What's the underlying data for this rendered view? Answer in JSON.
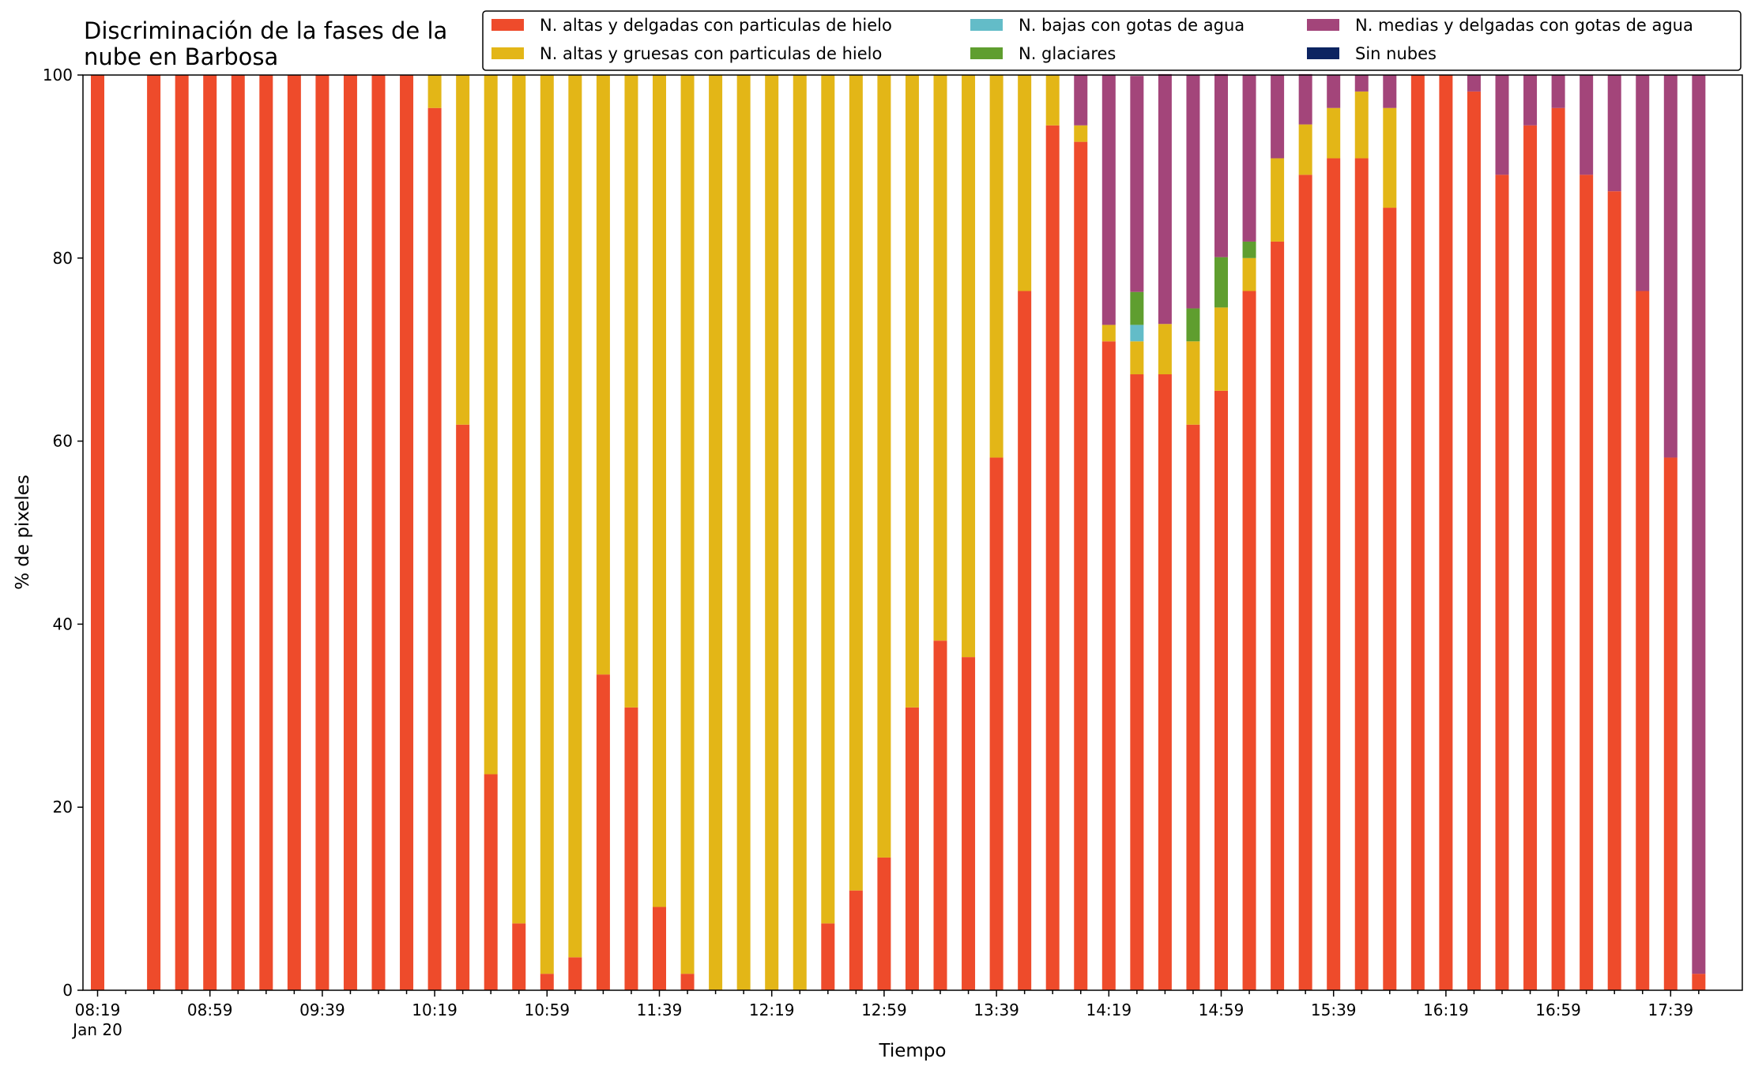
{
  "chart_data": {
    "type": "bar",
    "stacked": true,
    "title": [
      "Discriminación de la fases de la",
      "nube en Barbosa"
    ],
    "xlabel": "Tiempo",
    "ylabel": "% de pixeles",
    "ylim": [
      0,
      100
    ],
    "yticks": [
      0,
      20,
      40,
      60,
      80,
      100
    ],
    "grid": false,
    "legend_position": "top-right",
    "x_tick_labels": [
      {
        "index": 0,
        "label": "08:19",
        "sublabel": "Jan 20"
      },
      {
        "index": 4,
        "label": "08:59"
      },
      {
        "index": 8,
        "label": "09:39"
      },
      {
        "index": 12,
        "label": "10:19"
      },
      {
        "index": 16,
        "label": "10:59"
      },
      {
        "index": 20,
        "label": "11:39"
      },
      {
        "index": 24,
        "label": "12:19"
      },
      {
        "index": 28,
        "label": "12:59"
      },
      {
        "index": 32,
        "label": "13:39"
      },
      {
        "index": 36,
        "label": "14:19"
      },
      {
        "index": 40,
        "label": "14:59"
      },
      {
        "index": 44,
        "label": "15:39"
      },
      {
        "index": 48,
        "label": "16:19"
      },
      {
        "index": 52,
        "label": "16:59"
      },
      {
        "index": 56,
        "label": "17:39"
      }
    ],
    "categories": [
      "08:19",
      "08:29",
      "08:39",
      "08:49",
      "08:59",
      "09:09",
      "09:19",
      "09:29",
      "09:39",
      "09:49",
      "09:59",
      "10:09",
      "10:19",
      "10:29",
      "10:39",
      "10:49",
      "10:59",
      "11:09",
      "11:19",
      "11:29",
      "11:39",
      "11:49",
      "11:59",
      "12:09",
      "12:19",
      "12:29",
      "12:39",
      "12:49",
      "12:59",
      "13:09",
      "13:19",
      "13:29",
      "13:39",
      "13:49",
      "13:59",
      "14:09",
      "14:19",
      "14:29",
      "14:39",
      "14:49",
      "14:59",
      "15:09",
      "15:19",
      "15:29",
      "15:39",
      "15:49",
      "15:59",
      "16:09",
      "16:19",
      "16:29",
      "16:39",
      "16:49",
      "16:59",
      "17:09",
      "17:19",
      "17:29",
      "17:39",
      "17:49"
    ],
    "series": [
      {
        "name": "N. altas y delgadas con particulas de hielo",
        "color": "#ee4b2b",
        "values": [
          100,
          0,
          100,
          100,
          100,
          100,
          100,
          100,
          100,
          100,
          100,
          100,
          96.4,
          61.8,
          23.6,
          7.3,
          1.8,
          3.6,
          34.5,
          30.9,
          9.1,
          1.8,
          0,
          0,
          0,
          0,
          7.3,
          10.9,
          14.5,
          30.9,
          38.2,
          36.4,
          58.2,
          76.4,
          94.5,
          92.7,
          70.9,
          67.3,
          67.3,
          61.8,
          65.5,
          76.4,
          81.8,
          89.1,
          90.9,
          90.9,
          85.5,
          100,
          100,
          98.2,
          89.1,
          94.5,
          96.4,
          89.1,
          87.3,
          76.4,
          58.2,
          1.8
        ]
      },
      {
        "name": "N. altas y gruesas con particulas de hielo",
        "color": "#e3b617",
        "values": [
          0,
          0,
          0,
          0,
          0,
          0,
          0,
          0,
          0,
          0,
          0,
          0,
          3.6,
          38.2,
          76.4,
          92.7,
          98.2,
          96.4,
          65.5,
          69.1,
          90.9,
          98.2,
          100,
          100,
          100,
          100,
          92.7,
          89.1,
          85.5,
          69.1,
          61.8,
          63.6,
          41.8,
          23.6,
          5.5,
          1.8,
          1.8,
          3.6,
          5.5,
          9.1,
          9.1,
          3.6,
          9.1,
          5.5,
          5.5,
          7.3,
          10.9,
          0,
          0,
          0,
          0,
          0,
          0,
          0,
          0,
          0,
          0,
          0
        ]
      },
      {
        "name": "N. bajas con gotas de agua",
        "color": "#63bcc8",
        "values": [
          0,
          0,
          0,
          0,
          0,
          0,
          0,
          0,
          0,
          0,
          0,
          0,
          0,
          0,
          0,
          0,
          0,
          0,
          0,
          0,
          0,
          0,
          0,
          0,
          0,
          0,
          0,
          0,
          0,
          0,
          0,
          0,
          0,
          0,
          0,
          0,
          0,
          1.8,
          0,
          0,
          0,
          0,
          0,
          0,
          0,
          0,
          0,
          0,
          0,
          0,
          0,
          0,
          0,
          0,
          0,
          0,
          0,
          0
        ]
      },
      {
        "name": "N. glaciares",
        "color": "#5f9e2f",
        "values": [
          0,
          0,
          0,
          0,
          0,
          0,
          0,
          0,
          0,
          0,
          0,
          0,
          0,
          0,
          0,
          0,
          0,
          0,
          0,
          0,
          0,
          0,
          0,
          0,
          0,
          0,
          0,
          0,
          0,
          0,
          0,
          0,
          0,
          0,
          0,
          0,
          0,
          3.6,
          0,
          3.6,
          5.5,
          1.8,
          0,
          0,
          0,
          0,
          0,
          0,
          0,
          0,
          0,
          0,
          0,
          0,
          0,
          0,
          0,
          0
        ]
      },
      {
        "name": "N. medias y delgadas con gotas de agua",
        "color": "#a3457a",
        "values": [
          0,
          0,
          0,
          0,
          0,
          0,
          0,
          0,
          0,
          0,
          0,
          0,
          0,
          0,
          0,
          0,
          0,
          0,
          0,
          0,
          0,
          0,
          0,
          0,
          0,
          0,
          0,
          0,
          0,
          0,
          0,
          0,
          0,
          0,
          0,
          5.5,
          27.3,
          23.6,
          27.3,
          25.5,
          20,
          18.2,
          9.1,
          5.5,
          3.6,
          1.8,
          3.6,
          0,
          0,
          1.8,
          10.9,
          5.5,
          3.6,
          10.9,
          12.7,
          23.6,
          41.8,
          98.2
        ]
      },
      {
        "name": "Sin nubes",
        "color": "#0c2461",
        "values": [
          0,
          0,
          0,
          0,
          0,
          0,
          0,
          0,
          0,
          0,
          0,
          0,
          0,
          0,
          0,
          0,
          0,
          0,
          0,
          0,
          0,
          0,
          0,
          0,
          0,
          0,
          0,
          0,
          0,
          0,
          0,
          0,
          0,
          0,
          0,
          0,
          0,
          0,
          0,
          0,
          0,
          0,
          0,
          0,
          0,
          0,
          0,
          0,
          0,
          0,
          0,
          0,
          0,
          0,
          0,
          0,
          0,
          0
        ]
      }
    ]
  }
}
